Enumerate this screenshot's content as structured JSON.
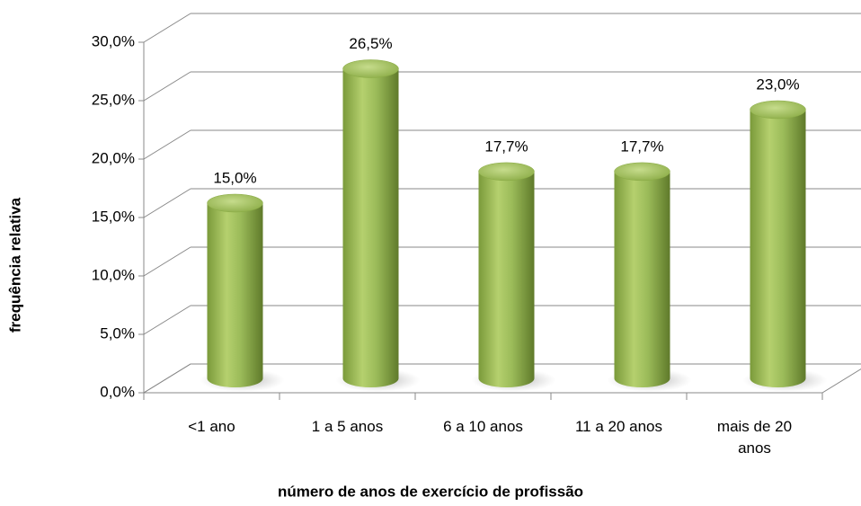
{
  "chart_data": {
    "type": "bar3d",
    "categories": [
      "<1 ano",
      "1 a 5 anos",
      "6 a 10 anos",
      "11 a 20 anos",
      "mais de 20 anos"
    ],
    "values": [
      15.0,
      26.5,
      17.7,
      17.7,
      23.0
    ],
    "value_labels": [
      "15,0%",
      "26,5%",
      "17,7%",
      "17,7%",
      "23,0%"
    ],
    "color": "#9bbb59",
    "ylim": [
      0,
      30
    ],
    "yticks": [
      {
        "value": 0,
        "label": "0,0%"
      },
      {
        "value": 5,
        "label": "5,0%"
      },
      {
        "value": 10,
        "label": "10,0%"
      },
      {
        "value": 15,
        "label": "15,0%"
      },
      {
        "value": 20,
        "label": "20,0%"
      },
      {
        "value": 25,
        "label": "25,0%"
      },
      {
        "value": 30,
        "label": "30,0%"
      }
    ],
    "grid": true,
    "x_label": "número de anos de exercício de profissão",
    "y_label": "frequência relativa"
  }
}
